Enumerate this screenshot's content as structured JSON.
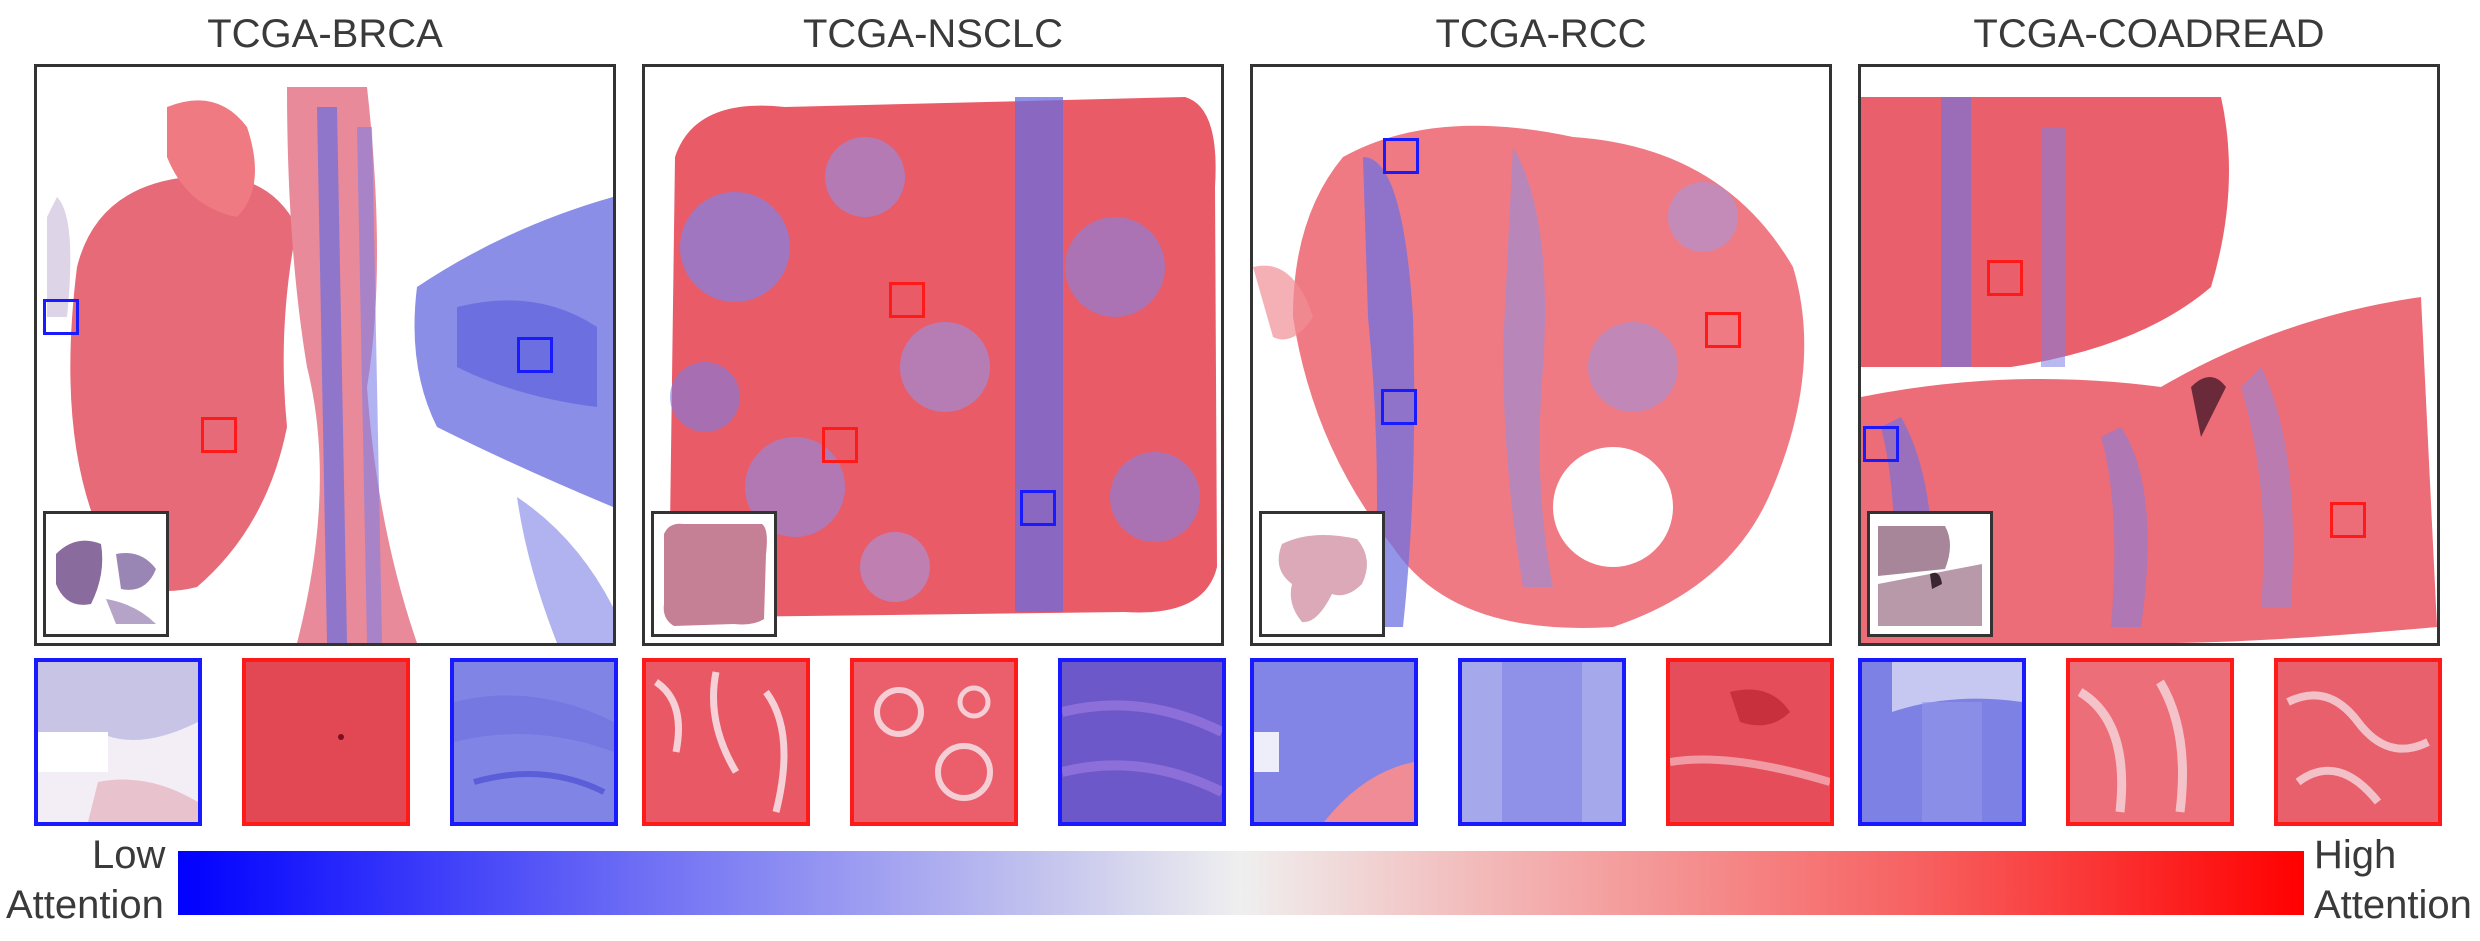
{
  "datasets": [
    {
      "title": "TCGA-BRCA",
      "tint": "red-heavy",
      "rois": [
        "blue",
        "blue",
        "red"
      ],
      "patches": [
        "blue",
        "red",
        "blue"
      ]
    },
    {
      "title": "TCGA-NSCLC",
      "tint": "mixed",
      "rois": [
        "red",
        "red",
        "blue"
      ],
      "patches": [
        "red",
        "red",
        "blue"
      ]
    },
    {
      "title": "TCGA-RCC",
      "tint": "mixed",
      "rois": [
        "blue",
        "red",
        "blue"
      ],
      "patches": [
        "blue",
        "blue",
        "red"
      ]
    },
    {
      "title": "TCGA-COADREAD",
      "tint": "mixed",
      "rois": [
        "red",
        "blue",
        "red"
      ],
      "patches": [
        "blue",
        "red",
        "red"
      ]
    }
  ],
  "colorbar": {
    "low_line1": "Low",
    "low_line2": "Attention",
    "high_line1": "High",
    "high_line2": "Attention",
    "low_color": "#0000ff",
    "high_color": "#ff0000"
  },
  "colors": {
    "roi_blue": "#1a1aff",
    "roi_red": "#ff1a1a",
    "frame": "#333333"
  }
}
